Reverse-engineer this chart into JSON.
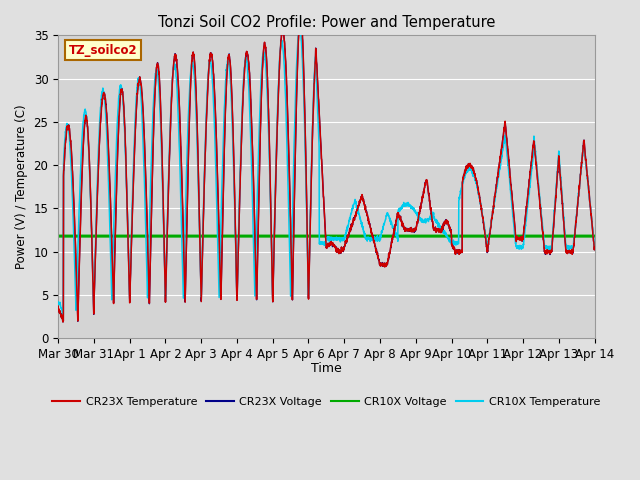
{
  "title": "Tonzi Soil CO2 Profile: Power and Temperature",
  "xlabel": "Time",
  "ylabel": "Power (V) / Temperature (C)",
  "ylim": [
    0,
    35
  ],
  "annotation": "TZ_soilco2",
  "green_voltage": 11.8,
  "fig_bg": "#e0e0e0",
  "plot_bg": "#d4d4d4",
  "x_tick_labels": [
    "Mar 30",
    "Mar 31",
    "Apr 1",
    "Apr 2",
    "Apr 3",
    "Apr 4",
    "Apr 5",
    "Apr 6",
    "Apr 7",
    "Apr 8",
    "Apr 9",
    "Apr 10",
    "Apr 11",
    "Apr 12",
    "Apr 13",
    "Apr 14"
  ],
  "cr23x_temp_color": "#cc0000",
  "cr23x_volt_color": "#000088",
  "cr10x_volt_color": "#00aa00",
  "cr10x_temp_color": "#00ccee"
}
